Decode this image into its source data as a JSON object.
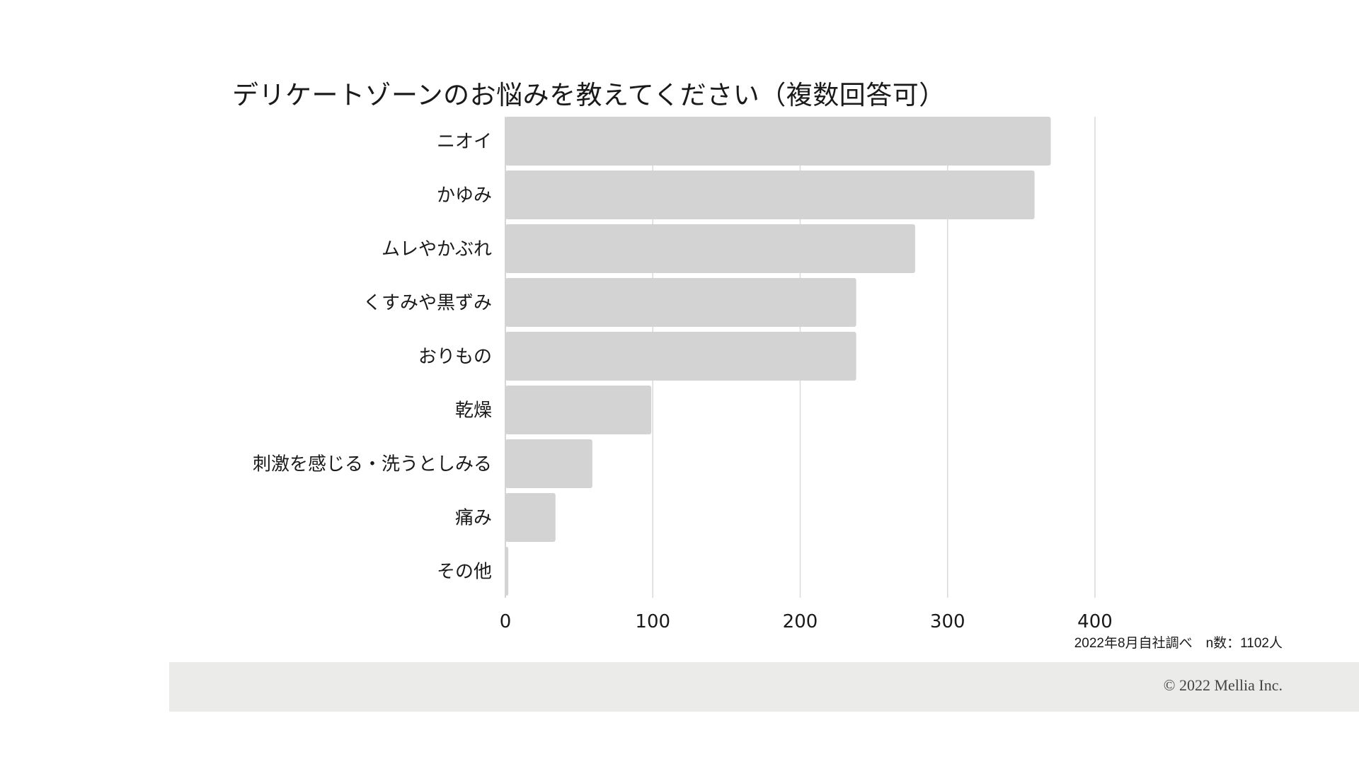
{
  "chart_data": {
    "type": "bar",
    "orientation": "horizontal",
    "title": "デリケートゾーンのお悩みを教えてください（複数回答可）",
    "categories": [
      "ニオイ",
      "かゆみ",
      "ムレやかぶれ",
      "くすみや黒ずみ",
      "おりもの",
      "乾燥",
      "刺激を感じる・洗うとしみる",
      "痛み",
      "その他"
    ],
    "values": [
      370,
      359,
      278,
      238,
      238,
      99,
      59,
      34,
      2
    ],
    "xlim": [
      0,
      400
    ],
    "x_ticks": [
      "0",
      "100",
      "200",
      "300",
      "400"
    ],
    "grid": true,
    "bar_color": "#d3d3d3",
    "grid_color": "#d9d9d9"
  },
  "source_note": "2022年8月自社調べ　n数：1102人",
  "copyright": "© 2022 Mellia Inc."
}
